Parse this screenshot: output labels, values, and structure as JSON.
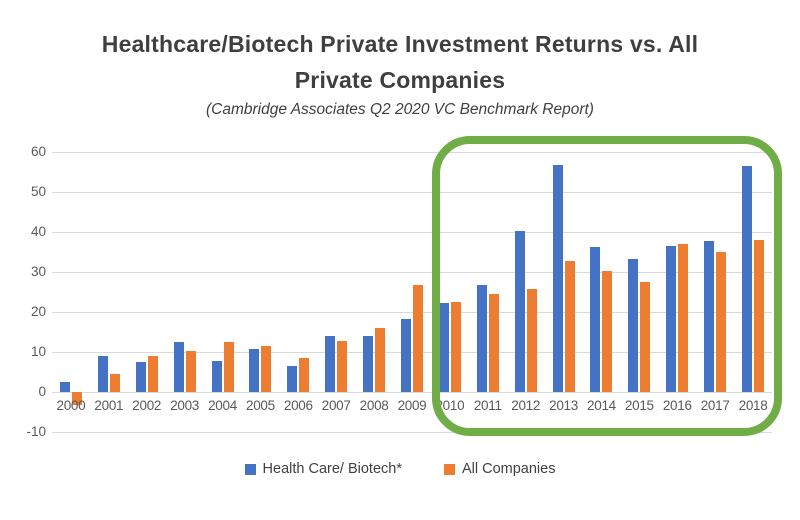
{
  "title": {
    "line1": "Healthcare/Biotech Private Investment Returns vs. All",
    "line2": "Private Companies"
  },
  "subtitle": "(Cambridge Associates Q2 2020 VC Benchmark Report)",
  "chart_data": {
    "type": "bar",
    "title": "Healthcare/Biotech Private Investment Returns vs. All Private Companies",
    "subtitle": "(Cambridge Associates Q2 2020 VC Benchmark Report)",
    "categories": [
      "2000",
      "2001",
      "2002",
      "2003",
      "2004",
      "2005",
      "2006",
      "2007",
      "2008",
      "2009",
      "2010",
      "2011",
      "2012",
      "2013",
      "2014",
      "2015",
      "2016",
      "2017",
      "2018"
    ],
    "series": [
      {
        "name": "Health Care/ Biotech*",
        "color": "#4472C4",
        "values": [
          2.5,
          9.0,
          7.5,
          12.6,
          7.7,
          10.8,
          6.6,
          14.0,
          13.9,
          18.3,
          22.3,
          26.7,
          40.3,
          56.8,
          36.2,
          33.3,
          36.5,
          37.8,
          56.6
        ]
      },
      {
        "name": "All Companies",
        "color": "#ED7D31",
        "values": [
          -3.2,
          4.5,
          9.0,
          10.2,
          12.4,
          11.5,
          8.5,
          12.8,
          15.9,
          26.8,
          22.4,
          24.4,
          25.8,
          32.7,
          30.3,
          27.6,
          36.9,
          35.0,
          37.9
        ]
      }
    ],
    "xlabel": "",
    "ylabel": "",
    "ylim": [
      -10,
      60
    ],
    "yticks": [
      60,
      50,
      40,
      30,
      20,
      10,
      0,
      -10
    ],
    "grid": "horizontal",
    "legend_position": "bottom",
    "annotations": [
      {
        "type": "highlight-box",
        "x_from": "2010",
        "x_to": "2018",
        "color": "#70AD47"
      }
    ],
    "colors": {
      "gridline": "#d9d9d9",
      "axis_text": "#595959",
      "title_text": "#3f3f3f"
    }
  }
}
